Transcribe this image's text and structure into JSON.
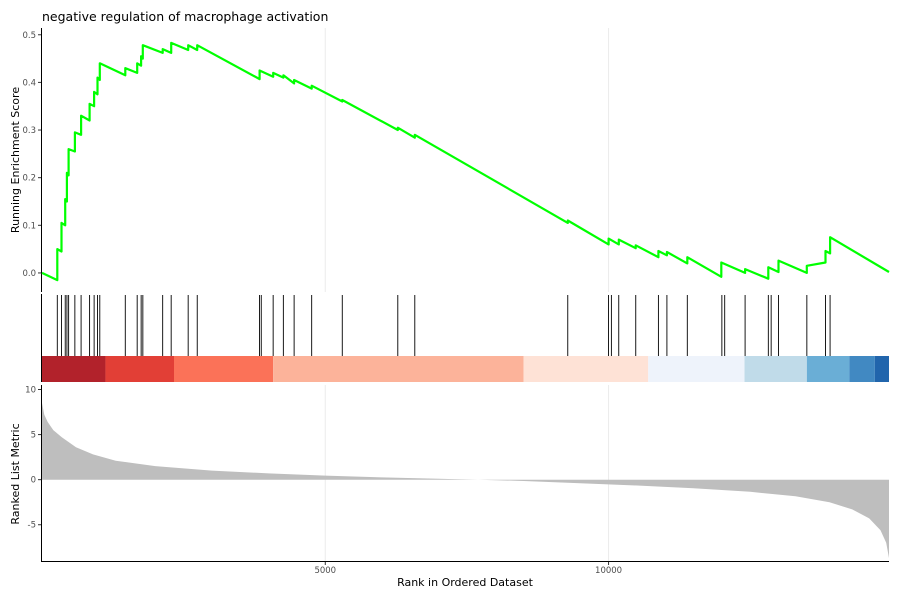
{
  "chart_data": {
    "type": "line",
    "title": "negative regulation of macrophage activation",
    "xlabel": "Rank in Ordered Dataset",
    "x_ticks": [
      5000,
      10000
    ],
    "xlim": [
      0,
      14950
    ],
    "panels": {
      "running_score": {
        "ylabel": "Running Enrichment Score",
        "ylim": [
          -0.04,
          0.51
        ],
        "y_ticks": [
          0.0,
          0.1,
          0.2,
          0.3,
          0.4,
          0.5
        ],
        "y_tick_labels": [
          "0.0",
          "0.1",
          "0.2",
          "0.3",
          "0.4",
          "0.5"
        ],
        "line_color": "#00ff00",
        "points": [
          [
            0,
            0.0
          ],
          [
            270,
            -0.015
          ],
          [
            270,
            0.05
          ],
          [
            345,
            0.045
          ],
          [
            345,
            0.105
          ],
          [
            410,
            0.1
          ],
          [
            410,
            0.155
          ],
          [
            440,
            0.15
          ],
          [
            440,
            0.21
          ],
          [
            470,
            0.205
          ],
          [
            470,
            0.26
          ],
          [
            580,
            0.255
          ],
          [
            580,
            0.295
          ],
          [
            690,
            0.29
          ],
          [
            690,
            0.33
          ],
          [
            840,
            0.32
          ],
          [
            840,
            0.355
          ],
          [
            920,
            0.35
          ],
          [
            920,
            0.38
          ],
          [
            980,
            0.375
          ],
          [
            980,
            0.41
          ],
          [
            1020,
            0.405
          ],
          [
            1020,
            0.44
          ],
          [
            1470,
            0.415
          ],
          [
            1470,
            0.43
          ],
          [
            1680,
            0.42
          ],
          [
            1680,
            0.44
          ],
          [
            1750,
            0.435
          ],
          [
            1750,
            0.455
          ],
          [
            1780,
            0.45
          ],
          [
            1780,
            0.478
          ],
          [
            2130,
            0.462
          ],
          [
            2130,
            0.47
          ],
          [
            2280,
            0.462
          ],
          [
            2280,
            0.483
          ],
          [
            2580,
            0.468
          ],
          [
            2580,
            0.478
          ],
          [
            2740,
            0.468
          ],
          [
            2740,
            0.478
          ],
          [
            3840,
            0.407
          ],
          [
            3840,
            0.425
          ],
          [
            4080,
            0.412
          ],
          [
            4080,
            0.42
          ],
          [
            4260,
            0.41
          ],
          [
            4260,
            0.415
          ],
          [
            4450,
            0.398
          ],
          [
            4450,
            0.405
          ],
          [
            4760,
            0.387
          ],
          [
            4760,
            0.393
          ],
          [
            5300,
            0.36
          ],
          [
            5300,
            0.363
          ],
          [
            6280,
            0.3
          ],
          [
            6280,
            0.305
          ],
          [
            6580,
            0.284
          ],
          [
            6580,
            0.29
          ],
          [
            9280,
            0.105
          ],
          [
            9280,
            0.11
          ],
          [
            10000,
            0.06
          ],
          [
            10000,
            0.072
          ],
          [
            10180,
            0.06
          ],
          [
            10180,
            0.07
          ],
          [
            10480,
            0.052
          ],
          [
            10480,
            0.058
          ],
          [
            10880,
            0.033
          ],
          [
            10880,
            0.046
          ],
          [
            11030,
            0.037
          ],
          [
            11030,
            0.044
          ],
          [
            11390,
            0.02
          ],
          [
            11390,
            0.033
          ],
          [
            11990,
            -0.008
          ],
          [
            11990,
            0.022
          ],
          [
            12410,
            0.0
          ],
          [
            12410,
            0.008
          ],
          [
            12820,
            -0.012
          ],
          [
            12820,
            0.012
          ],
          [
            13000,
            0.002
          ],
          [
            13000,
            0.026
          ],
          [
            13500,
            0.0
          ],
          [
            13500,
            0.015
          ],
          [
            13830,
            0.022
          ],
          [
            13830,
            0.046
          ],
          [
            13910,
            0.041
          ],
          [
            13910,
            0.075
          ],
          [
            14950,
            0.002
          ]
        ]
      },
      "hits": {
        "gene_ranks": [
          270,
          345,
          410,
          440,
          470,
          580,
          690,
          840,
          920,
          980,
          1020,
          1470,
          1680,
          1750,
          1780,
          2130,
          2280,
          2580,
          2740,
          3840,
          3870,
          4080,
          4260,
          4450,
          4760,
          5300,
          6280,
          6580,
          9280,
          10000,
          10050,
          10180,
          10480,
          10880,
          11030,
          11390,
          12000,
          12050,
          12410,
          12820,
          12870,
          13000,
          13500,
          13830,
          13910
        ],
        "color_bands": [
          {
            "start": 0,
            "end": 1120,
            "color": "#b2222b"
          },
          {
            "start": 1120,
            "end": 2330,
            "color": "#e23f36"
          },
          {
            "start": 2330,
            "end": 4080,
            "color": "#fb7258"
          },
          {
            "start": 4080,
            "end": 8500,
            "color": "#fcb39a"
          },
          {
            "start": 8500,
            "end": 10700,
            "color": "#fee2d6"
          },
          {
            "start": 10700,
            "end": 12400,
            "color": "#eef3fb"
          },
          {
            "start": 12400,
            "end": 13500,
            "color": "#c0dbe9"
          },
          {
            "start": 13500,
            "end": 14250,
            "color": "#6aaed6"
          },
          {
            "start": 14250,
            "end": 14700,
            "color": "#4189c2"
          },
          {
            "start": 14700,
            "end": 14950,
            "color": "#2165ac"
          }
        ]
      },
      "ranked_metric": {
        "ylabel": "Ranked List Metric",
        "ylim": [
          -8.8,
          10.5
        ],
        "y_ticks": [
          -5,
          0,
          5,
          10
        ],
        "y_tick_labels": [
          "-5",
          "0",
          "5",
          "10"
        ],
        "fill_color": "#bebebe",
        "profile": [
          [
            0,
            8.5
          ],
          [
            40,
            7.2
          ],
          [
            100,
            6.4
          ],
          [
            200,
            5.5
          ],
          [
            350,
            4.7
          ],
          [
            600,
            3.6
          ],
          [
            900,
            2.8
          ],
          [
            1300,
            2.1
          ],
          [
            2000,
            1.5
          ],
          [
            3000,
            1.0
          ],
          [
            4000,
            0.7
          ],
          [
            5000,
            0.45
          ],
          [
            6000,
            0.25
          ],
          [
            7000,
            0.1
          ],
          [
            7700,
            0.0
          ],
          [
            8500,
            -0.15
          ],
          [
            9500,
            -0.4
          ],
          [
            10500,
            -0.65
          ],
          [
            11500,
            -0.95
          ],
          [
            12500,
            -1.35
          ],
          [
            13300,
            -1.85
          ],
          [
            13900,
            -2.5
          ],
          [
            14300,
            -3.3
          ],
          [
            14600,
            -4.3
          ],
          [
            14800,
            -5.6
          ],
          [
            14900,
            -7.0
          ],
          [
            14950,
            -8.7
          ]
        ]
      }
    }
  }
}
